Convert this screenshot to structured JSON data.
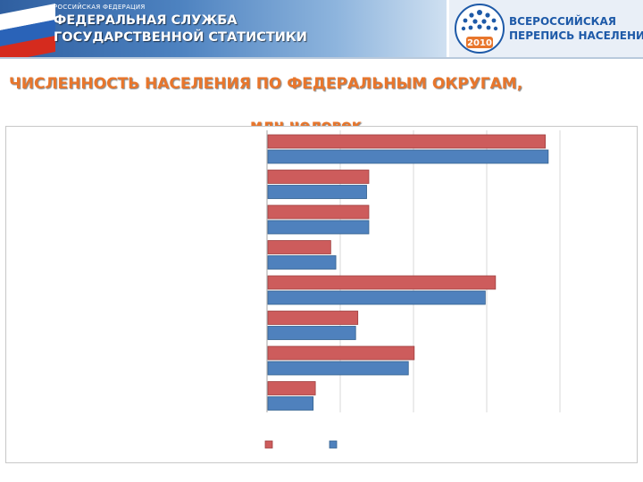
{
  "header": {
    "agency_sup": "РОССИЙСКАЯ ФЕДЕРАЦИЯ",
    "agency_line1": "ФЕДЕРАЛЬНАЯ СЛУЖБА",
    "agency_line2": "ГОСУДАРСТВЕННОЙ СТАТИСТИКИ",
    "census_line1": "ВСЕРОССИЙСКАЯ",
    "census_line2": "ПЕРЕПИСЬ НАСЕЛЕНИЯ",
    "census_year": "2010"
  },
  "title": "ЧИСЛЕННОСТЬ НАСЕЛЕНИЯ ПО ФЕДЕРАЛЬНЫМ ОКРУГАМ,",
  "subtitle": "млн человек",
  "colors": {
    "series_a": "#cd5c5c",
    "series_b": "#4f81bd",
    "title": "#e8762c",
    "census_brand": "#1e5aa8"
  },
  "chart_data": {
    "type": "bar",
    "orientation": "horizontal",
    "categories": [
      "",
      "",
      "",
      "",
      "",
      "",
      "",
      ""
    ],
    "series": [
      {
        "values": [
          38.0,
          13.9,
          13.9,
          8.7,
          31.2,
          12.4,
          20.1,
          6.6
        ]
      },
      {
        "values": [
          38.4,
          13.6,
          13.9,
          9.4,
          29.8,
          12.1,
          19.3,
          6.3
        ]
      }
    ],
    "xlim": [
      0,
      40
    ],
    "xticks": [
      0,
      10,
      20,
      30,
      40
    ],
    "grid": true,
    "legend": "bottom",
    "title": "",
    "xlabel": "",
    "ylabel": ""
  }
}
